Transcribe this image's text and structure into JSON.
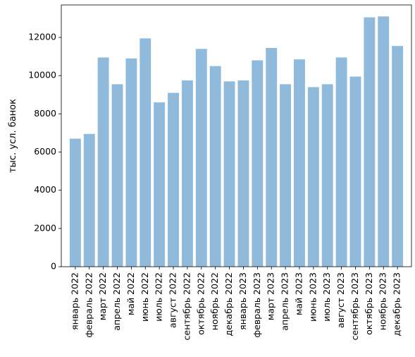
{
  "chart_data": {
    "type": "bar",
    "title": "",
    "xlabel": "",
    "ylabel": "тыс. усл. банок",
    "ylim": [
      0,
      13700
    ],
    "yticks": [
      0,
      2000,
      4000,
      6000,
      8000,
      10000,
      12000
    ],
    "grid": false,
    "bar_color": "#8fbadb",
    "categories": [
      "январь 2022",
      "февраль 2022",
      "март 2022",
      "апрель 2022",
      "май 2022",
      "июнь 2022",
      "июль 2022",
      "август 2022",
      "сентябрь 2022",
      "октябрь 2022",
      "ноябрь 2022",
      "декабрь 2022",
      "январь 2023",
      "февраль 2023",
      "март 2023",
      "апрель 2023",
      "май 2023",
      "июнь 2023",
      "июль 2023",
      "август 2023",
      "сентябрь 2023",
      "октябрь 2023",
      "ноябрь 2023",
      "декабрь 2023"
    ],
    "values": [
      6700,
      6950,
      10950,
      9550,
      10900,
      11950,
      8600,
      9100,
      9750,
      11400,
      10500,
      9700,
      9750,
      10800,
      11450,
      9550,
      10850,
      9400,
      9550,
      10950,
      9950,
      13050,
      13100,
      11550
    ]
  }
}
